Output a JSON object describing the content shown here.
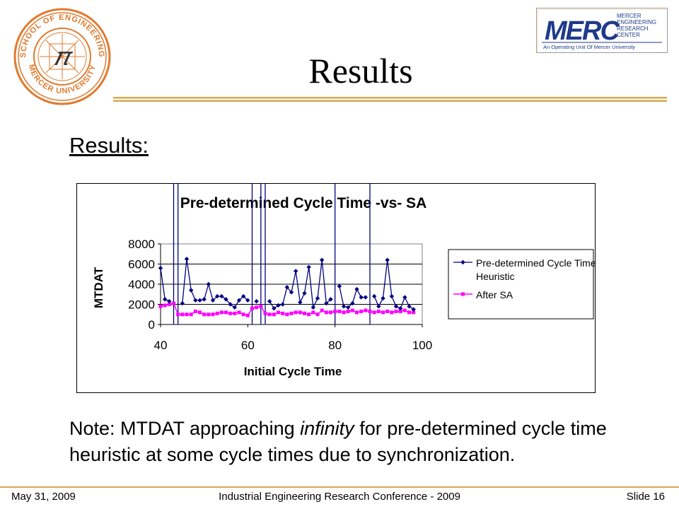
{
  "slide": {
    "title": "Results",
    "subtitle": "Results:",
    "note_prefix": "Note: MTDAT approaching ",
    "note_emphasis": "infinity",
    "note_suffix": " for pre-determined cycle time heuristic at some cycle times due to synchronization."
  },
  "logos": {
    "seal_top_text": "SCHOOL OF ENGINEERING",
    "seal_bottom_text": "MERCER UNIVERSITY",
    "seal_monogram": "𝜋",
    "merc_word": "MERC",
    "merc_line1": "MERCER",
    "merc_line2": "ENGINEERING",
    "merc_line3": "RESEARCH",
    "merc_line4": "CENTER",
    "merc_tagline": "An Operating Unit Of Mercer University"
  },
  "footer": {
    "date": "May 31, 2009",
    "conference": "Industrial Engineering Research Conference - 2009",
    "slide_number": "Slide 16"
  },
  "colors": {
    "accent_gold": "#d9a84f",
    "series1": "#000080",
    "series2": "#ff00ff",
    "seal_orange": "#e07a2e",
    "merc_blue": "#1f3a8a"
  },
  "chart_data": {
    "type": "line",
    "title": "Pre-determined Cycle Time -vs- SA",
    "xlabel": "Initial Cycle Time",
    "ylabel": "MTDAT",
    "xlim": [
      40,
      100
    ],
    "ylim": [
      0,
      8000
    ],
    "xticks": [
      40,
      60,
      80,
      100
    ],
    "yticks": [
      0,
      2000,
      4000,
      6000,
      8000
    ],
    "legend_position": "right",
    "gridlines": "horizontal",
    "series": [
      {
        "name": "Pre-determined Cycle Time Heuristic",
        "x": [
          40,
          41,
          42,
          43,
          44,
          45,
          46,
          47,
          48,
          49,
          50,
          51,
          52,
          53,
          54,
          55,
          56,
          57,
          58,
          59,
          60,
          61,
          62,
          63,
          64,
          65,
          66,
          67,
          68,
          69,
          70,
          71,
          72,
          73,
          74,
          75,
          76,
          77,
          78,
          79,
          80,
          81,
          82,
          83,
          84,
          85,
          86,
          87,
          88,
          89,
          90,
          91,
          92,
          93,
          94,
          95,
          96,
          97,
          98
        ],
        "y": [
          5600,
          2500,
          2300,
          null,
          null,
          2100,
          6500,
          3400,
          2400,
          2400,
          2500,
          4000,
          2400,
          2800,
          2800,
          2500,
          2000,
          1700,
          2400,
          2800,
          2400,
          null,
          2300,
          null,
          null,
          2300,
          1600,
          1900,
          2000,
          3700,
          3200,
          5300,
          2200,
          3100,
          5700,
          1700,
          2600,
          6400,
          2100,
          2500,
          null,
          3800,
          1800,
          1700,
          2100,
          3500,
          2700,
          2700,
          null,
          2800,
          1800,
          2600,
          6400,
          2800,
          1800,
          1600,
          2700,
          1800,
          1500
        ]
      },
      {
        "name": "After SA",
        "x": [
          40,
          41,
          42,
          43,
          44,
          45,
          46,
          47,
          48,
          49,
          50,
          51,
          52,
          53,
          54,
          55,
          56,
          57,
          58,
          59,
          60,
          61,
          62,
          63,
          64,
          65,
          66,
          67,
          68,
          69,
          70,
          71,
          72,
          73,
          74,
          75,
          76,
          77,
          78,
          79,
          80,
          81,
          82,
          83,
          84,
          85,
          86,
          87,
          88,
          89,
          90,
          91,
          92,
          93,
          94,
          95,
          96,
          97,
          98
        ],
        "y": [
          1800,
          1900,
          2000,
          2100,
          1000,
          1000,
          1000,
          1000,
          1300,
          1200,
          1000,
          1000,
          1000,
          1100,
          1200,
          1200,
          1100,
          1100,
          1200,
          1000,
          900,
          1600,
          1700,
          1800,
          1100,
          1000,
          1000,
          1200,
          1100,
          1000,
          1100,
          1200,
          1200,
          1100,
          1000,
          1200,
          1000,
          1400,
          1200,
          1200,
          1300,
          1300,
          1200,
          1300,
          1400,
          1200,
          1300,
          1400,
          1300,
          1200,
          1300,
          1200,
          1300,
          1200,
          1300,
          1300,
          1400,
          1200,
          1200
        ]
      }
    ],
    "spikes_to_infinity_at_x": [
      43,
      44,
      61,
      63,
      64,
      80,
      88
    ]
  }
}
